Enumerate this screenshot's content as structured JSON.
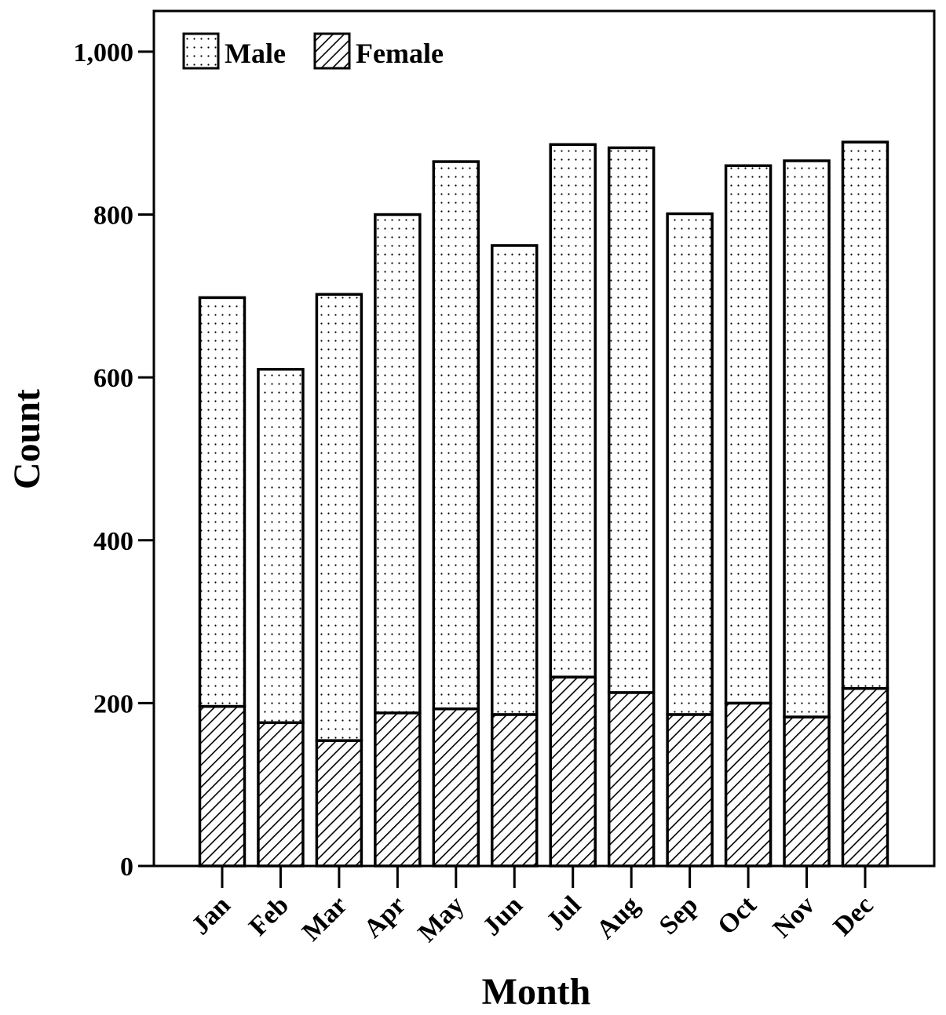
{
  "chart_data": {
    "type": "bar",
    "stacked": true,
    "categories": [
      "Jan",
      "Feb",
      "Mar",
      "Apr",
      "May",
      "Jun",
      "Jul",
      "Aug",
      "Sep",
      "Oct",
      "Nov",
      "Dec"
    ],
    "series": [
      {
        "name": "Female",
        "pattern": "hatched",
        "values": [
          196,
          176,
          154,
          188,
          193,
          186,
          232,
          213,
          186,
          200,
          183,
          218
        ]
      },
      {
        "name": "Male",
        "pattern": "dotted",
        "values": [
          502,
          434,
          548,
          612,
          672,
          576,
          654,
          669,
          615,
          660,
          683,
          671
        ]
      }
    ],
    "xlabel": "Month",
    "ylabel": "Count",
    "ylim": [
      0,
      1050
    ],
    "yticks": [
      0,
      200,
      400,
      600,
      800,
      1000
    ],
    "ytick_labels": [
      "0",
      "200",
      "400",
      "600",
      "800",
      "1,000"
    ],
    "legend": {
      "position": "top-left",
      "entries": [
        "Male",
        "Female"
      ]
    },
    "grid": false
  }
}
